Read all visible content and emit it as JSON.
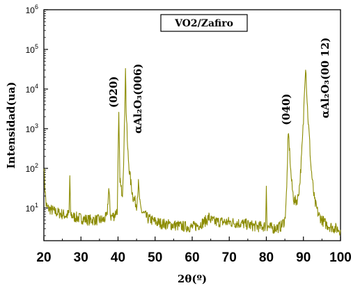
{
  "chart_data": {
    "type": "line",
    "title": "",
    "xlabel": "2θ(º)",
    "ylabel": "Intensidad(ua)",
    "xlim": [
      20,
      100
    ],
    "ylim": [
      1.5,
      1000000
    ],
    "y_scale": "log",
    "x_ticks": [
      "20",
      "30",
      "40",
      "50",
      "60",
      "70",
      "80",
      "90",
      "100"
    ],
    "y_ticks": [
      {
        "base": "10",
        "exp": "1",
        "value": 10
      },
      {
        "base": "10",
        "exp": "2",
        "value": 100
      },
      {
        "base": "10",
        "exp": "3",
        "value": 1000
      },
      {
        "base": "10",
        "exp": "4",
        "value": 10000
      },
      {
        "base": "10",
        "exp": "5",
        "value": 100000
      },
      {
        "base": "10",
        "exp": "6",
        "value": 1000000
      }
    ],
    "grid": false,
    "line_color": "#8b8b00",
    "series": [
      {
        "name": "VO2/Zafiro",
        "x": [
          20,
          20.3,
          20.6,
          21,
          22,
          23,
          24,
          25,
          26,
          26.8,
          27,
          27.2,
          28,
          30,
          32,
          34,
          36,
          37,
          37.5,
          38,
          39,
          39.8,
          40.2,
          40.5,
          40.8,
          41.2,
          41.6,
          41.9,
          42.0,
          42.2,
          42.6,
          43,
          43.5,
          44,
          45,
          45.5,
          46,
          46.5,
          47,
          48,
          50,
          52,
          54,
          56,
          58,
          60,
          62,
          64,
          64.5,
          65,
          66,
          68,
          70,
          72,
          74,
          76,
          78,
          79.8,
          80,
          80.2,
          81,
          82,
          83,
          84,
          85,
          85.5,
          85.8,
          86,
          86.3,
          86.6,
          87,
          87.5,
          88,
          88.5,
          89,
          89.5,
          90,
          90.3,
          90.6,
          90.8,
          91,
          91.3,
          91.6,
          92,
          92.5,
          93,
          94,
          95,
          96,
          97,
          98,
          99,
          100
        ],
        "y": [
          120,
          30,
          12,
          10,
          9,
          8,
          7.5,
          7,
          6.5,
          7,
          65,
          7,
          6,
          5.5,
          5,
          5,
          5,
          6,
          30,
          6,
          6.5,
          9,
          2000,
          60,
          30,
          25,
          300,
          8000,
          40000,
          3000,
          300,
          100,
          40,
          20,
          12,
          40,
          10,
          8,
          7,
          5.5,
          4.5,
          4,
          3.8,
          3.6,
          3.4,
          3.3,
          3.8,
          5,
          6,
          5,
          4.5,
          4.5,
          4.4,
          4.2,
          4,
          3.6,
          3.4,
          3.5,
          40,
          3.5,
          3.2,
          3.1,
          3.2,
          3.5,
          5,
          30,
          400,
          700,
          250,
          80,
          30,
          15,
          15,
          18,
          40,
          200,
          1500,
          12000,
          40000,
          15000,
          5000,
          1500,
          600,
          120,
          40,
          15,
          7,
          5,
          4,
          3.5,
          3.2,
          3,
          2.8
        ]
      }
    ],
    "annotations": [
      {
        "text": "(020)",
        "x": 40.3
      },
      {
        "text": "αAl₂O₃(006)",
        "x": 43.2
      },
      {
        "text": "(040)",
        "x": 86.3
      },
      {
        "text": "αAl₂O₃(00 12)",
        "x": 92.8
      }
    ],
    "legend": {
      "text": "VO2/Zafiro",
      "placement": "top-center"
    }
  }
}
